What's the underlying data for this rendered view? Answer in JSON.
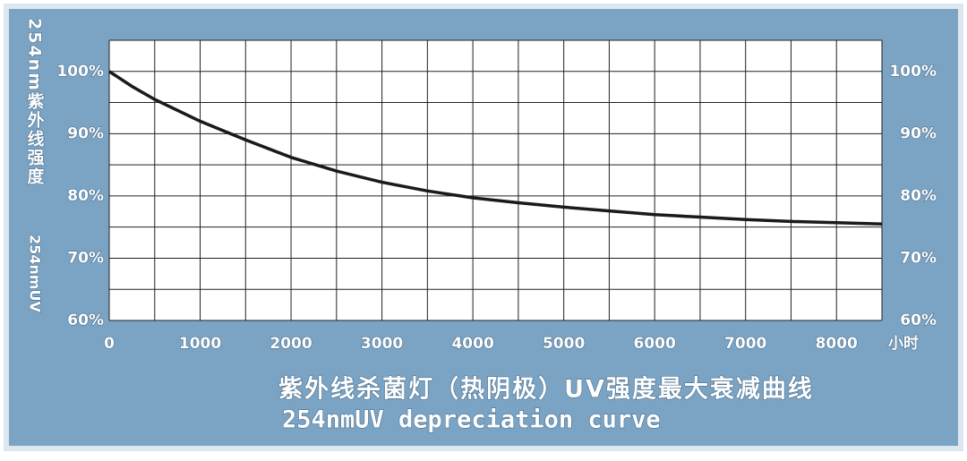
{
  "chart_data": {
    "type": "line",
    "y_label": "254nm紫外线强度",
    "y_label_en": "254nmUV",
    "x_label": "小时",
    "title": "紫外线杀菌灯（热阴极）UV强度最大衰减曲线",
    "subtitle": "254nmUV depreciation curve",
    "x": [
      0,
      250,
      500,
      1000,
      1500,
      2000,
      2500,
      3000,
      3500,
      4000,
      4500,
      5000,
      5500,
      6000,
      6500,
      7000,
      7500,
      8000,
      8500
    ],
    "values": [
      100,
      97.6,
      95.5,
      92,
      89,
      86.2,
      84,
      82.2,
      80.8,
      79.7,
      78.9,
      78.2,
      77.6,
      77.0,
      76.6,
      76.2,
      75.9,
      75.7,
      75.5
    ],
    "color": "#1a1a1a",
    "xlim": [
      0,
      8500
    ],
    "xticks": [
      0,
      1000,
      2000,
      3000,
      4000,
      5000,
      6000,
      7000,
      8000
    ],
    "xgrid": [
      0,
      500,
      1000,
      1500,
      2000,
      2500,
      3000,
      3500,
      4000,
      4500,
      5000,
      5500,
      6000,
      6500,
      7000,
      7500,
      8000,
      8500
    ],
    "ylim": [
      60,
      105
    ],
    "yticks": [
      {
        "value": 60,
        "label": "60%"
      },
      {
        "value": 70,
        "label": "70%"
      },
      {
        "value": 80,
        "label": "80%"
      },
      {
        "value": 90,
        "label": "90%"
      },
      {
        "value": 100,
        "label": "100%"
      }
    ],
    "y2lim": [
      60,
      105
    ],
    "y2ticks": [
      {
        "value": 60,
        "label": "60%"
      },
      {
        "value": 70,
        "label": "70%"
      },
      {
        "value": 80,
        "label": "80%"
      },
      {
        "value": 90,
        "label": "90%"
      },
      {
        "value": 100,
        "label": "100%"
      }
    ],
    "ygrid": [
      60,
      65,
      70,
      75,
      80,
      85,
      90,
      95,
      100,
      105
    ]
  }
}
